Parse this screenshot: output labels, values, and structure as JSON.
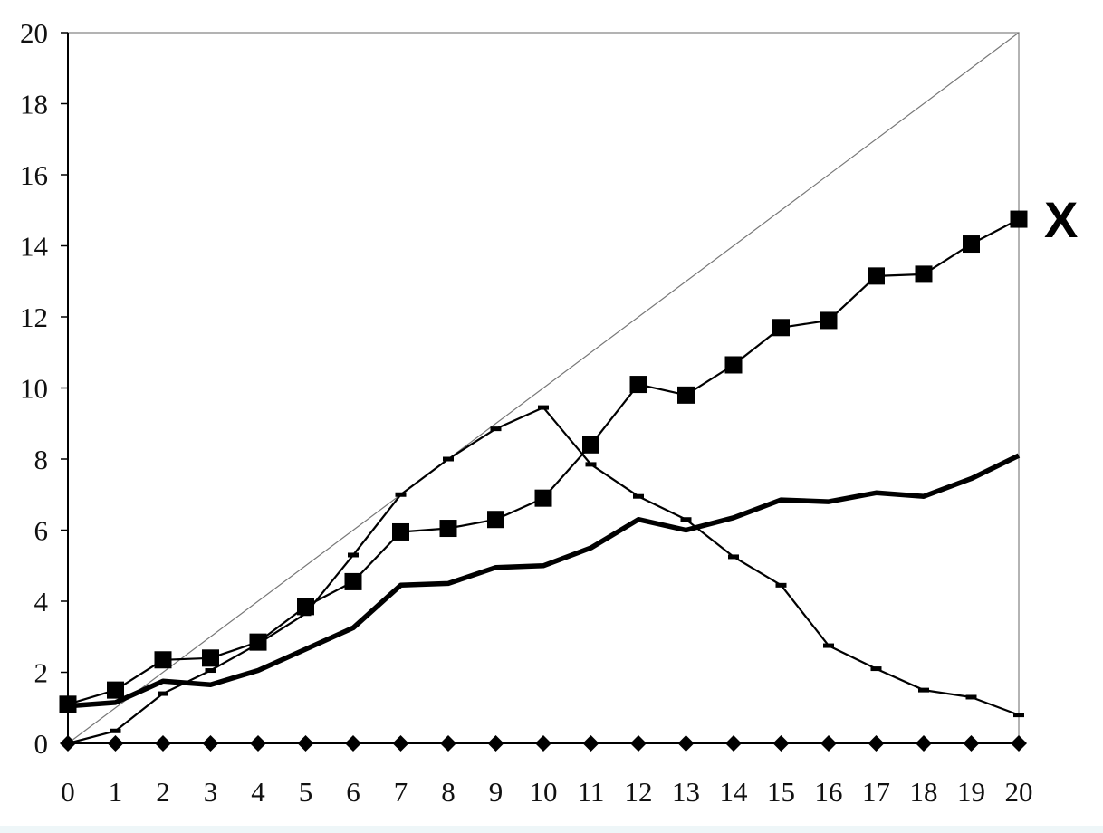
{
  "chart_data": {
    "type": "line",
    "title": "",
    "xlabel": "",
    "ylabel": "",
    "xlim": [
      0,
      20
    ],
    "ylim": [
      0,
      20
    ],
    "x_ticks": [
      "0",
      "1",
      "2",
      "3",
      "4",
      "5",
      "6",
      "7",
      "8",
      "9",
      "10",
      "11",
      "12",
      "13",
      "14",
      "15",
      "16",
      "17",
      "18",
      "19",
      "20"
    ],
    "y_ticks": [
      "0",
      "2",
      "4",
      "6",
      "8",
      "10",
      "12",
      "14",
      "16",
      "18",
      "20"
    ],
    "grid": false,
    "series": [
      {
        "name": "",
        "style": "thin-line",
        "color": "#777777",
        "x": [
          0,
          20
        ],
        "y": [
          0,
          20
        ]
      },
      {
        "name": "X",
        "style": "square-markers",
        "color": "#000000",
        "x": [
          0,
          1,
          2,
          3,
          4,
          5,
          6,
          7,
          8,
          9,
          10,
          11,
          12,
          13,
          14,
          15,
          16,
          17,
          18,
          19,
          20
        ],
        "y": [
          1.1,
          1.5,
          2.35,
          2.4,
          2.85,
          3.85,
          4.55,
          5.95,
          6.05,
          6.3,
          6.9,
          8.4,
          10.1,
          9.8,
          10.65,
          11.7,
          11.9,
          13.15,
          13.2,
          14.05,
          14.75
        ]
      },
      {
        "name": "",
        "style": "thick-line",
        "color": "#000000",
        "x": [
          0,
          1,
          2,
          3,
          4,
          5,
          6,
          7,
          8,
          9,
          10,
          11,
          12,
          13,
          14,
          15,
          16,
          17,
          18,
          19,
          20
        ],
        "y": [
          1.05,
          1.15,
          1.75,
          1.65,
          2.05,
          2.65,
          3.25,
          4.45,
          4.5,
          4.95,
          5.0,
          5.5,
          6.3,
          6.0,
          6.35,
          6.85,
          6.8,
          7.05,
          6.95,
          7.45,
          8.1
        ]
      },
      {
        "name": "",
        "style": "dash-markers",
        "color": "#000000",
        "x": [
          0,
          1,
          2,
          3,
          4,
          5,
          6,
          7,
          8,
          9,
          10,
          11,
          12,
          13,
          14,
          15,
          16,
          17,
          18,
          19,
          20
        ],
        "y": [
          0,
          0.35,
          1.4,
          2.05,
          2.8,
          3.65,
          5.3,
          7.0,
          8.0,
          8.85,
          9.45,
          7.85,
          6.95,
          6.3,
          5.25,
          4.45,
          2.75,
          2.1,
          1.5,
          1.3,
          0.8
        ]
      },
      {
        "name": "",
        "style": "diamond-markers",
        "color": "#000000",
        "x": [
          0,
          1,
          2,
          3,
          4,
          5,
          6,
          7,
          8,
          9,
          10,
          11,
          12,
          13,
          14,
          15,
          16,
          17,
          18,
          19,
          20
        ],
        "y": [
          0,
          0,
          0,
          0,
          0,
          0,
          0,
          0,
          0,
          0,
          0,
          0,
          0,
          0,
          0,
          0,
          0,
          0,
          0,
          0,
          0
        ]
      }
    ],
    "annotations": [
      {
        "text": "X",
        "series": "X"
      }
    ]
  }
}
